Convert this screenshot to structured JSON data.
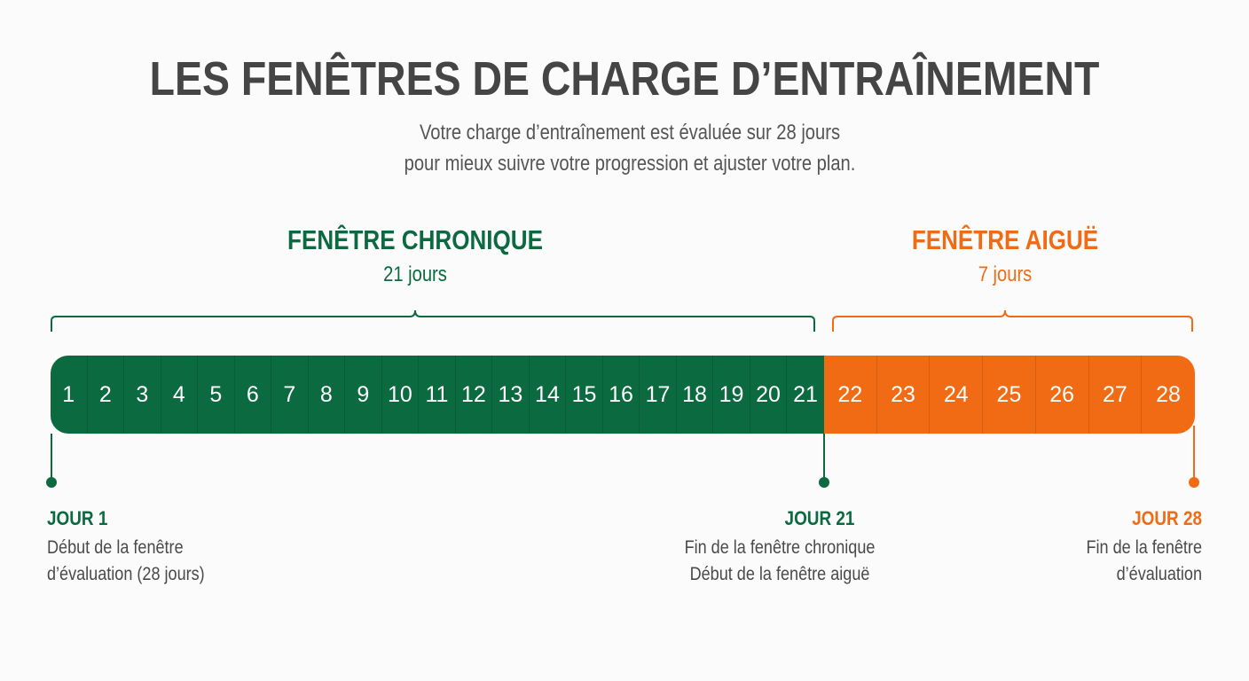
{
  "title": "LES FENÊTRES DE CHARGE D’ENTRAÎNEMENT",
  "subtitle_line1": "Votre charge d’entraînement est évaluée sur 28 jours",
  "subtitle_line2": "pour mieux suivre votre progression et ajuster votre plan.",
  "windows": {
    "chronic": {
      "title": "FENÊTRE CHRONIQUE",
      "days": "21 jours"
    },
    "acute": {
      "title": "FENÊTRE AIGUË",
      "days": "7 jours"
    }
  },
  "timeline": {
    "total_days": 28,
    "chronic_days": 21,
    "acute_days": 7,
    "colors": {
      "chronic": "#0b6a3f",
      "acute": "#f06b13"
    }
  },
  "markers": {
    "day1": {
      "label": "JOUR 1",
      "line1": "Début de la fenêtre",
      "line2": "d’évaluation (28 jours)"
    },
    "day21": {
      "label": "JOUR 21",
      "line1": "Fin de la fenêtre chronique",
      "line2": "Début de la fenêtre aiguë"
    },
    "day28": {
      "label": "JOUR 28",
      "line1": "Fin de la fenêtre",
      "line2": "d’évaluation"
    }
  }
}
